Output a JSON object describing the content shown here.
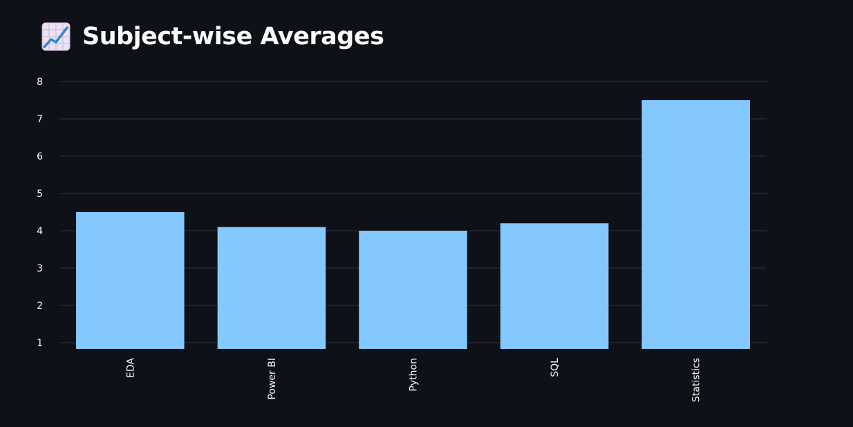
{
  "header": {
    "icon": "chart-increasing-icon",
    "title": "Subject-wise Averages"
  },
  "colors": {
    "background": "#0e1117",
    "bar": "#83c9ff",
    "grid": "#31333f",
    "text": "#fafafa"
  },
  "chart_data": {
    "type": "bar",
    "title": "Subject-wise Averages",
    "categories": [
      "EDA",
      "Power BI",
      "Python",
      "SQL",
      "Statistics"
    ],
    "values": [
      4.5,
      4.1,
      4.0,
      4.2,
      7.5
    ],
    "ylim": [
      0.84,
      8
    ],
    "yticks": [
      1,
      2,
      3,
      4,
      5,
      6,
      7,
      8
    ],
    "grid": true,
    "legend": "none"
  }
}
